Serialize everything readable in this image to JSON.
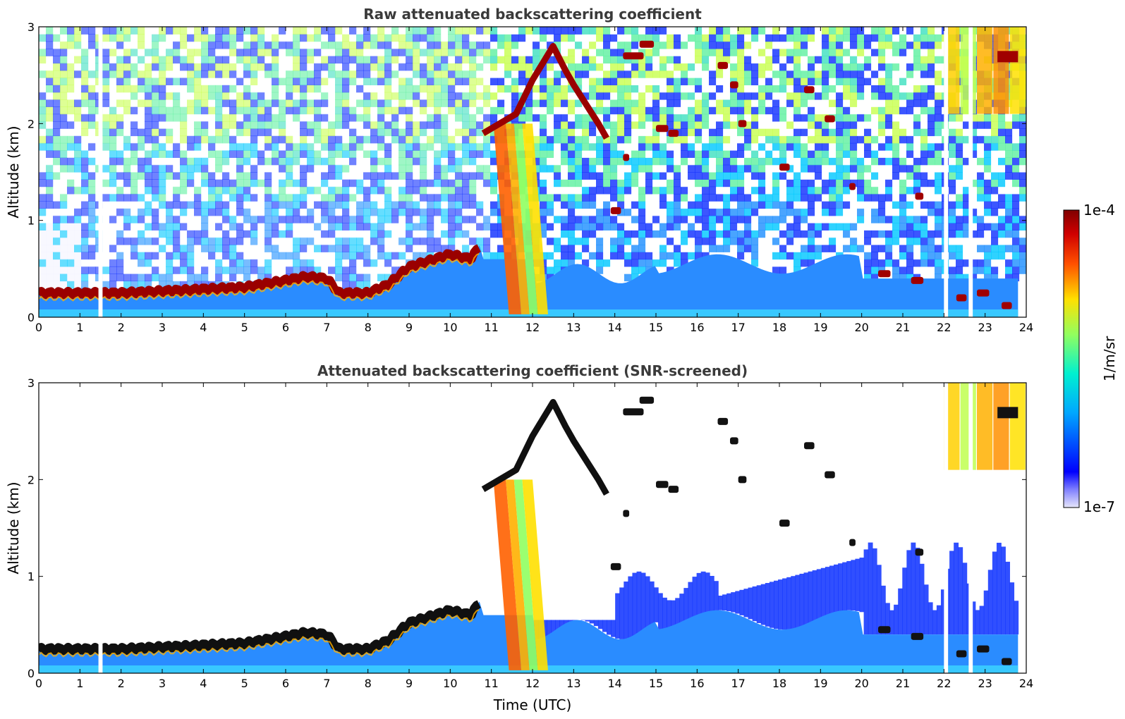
{
  "chart_data": [
    {
      "type": "heatmap",
      "title": "Raw attenuated backscattering coefficient",
      "xlabel": "",
      "ylabel": "Altitude (km)",
      "xlim": [
        0,
        24
      ],
      "ylim": [
        0,
        3
      ],
      "x_ticks": [
        "0",
        "1",
        "2",
        "3",
        "4",
        "5",
        "6",
        "7",
        "8",
        "9",
        "10",
        "11",
        "12",
        "13",
        "14",
        "15",
        "16",
        "17",
        "18",
        "19",
        "20",
        "21",
        "22",
        "23",
        "24"
      ],
      "y_ticks": [
        "0",
        "1",
        "2",
        "3"
      ],
      "screened": false,
      "layer_top_km": [
        [
          0,
          0.25
        ],
        [
          1.3,
          0.25
        ],
        [
          1.5,
          0.25
        ],
        [
          2,
          0.25
        ],
        [
          3,
          0.27
        ],
        [
          3.6,
          0.28
        ],
        [
          4,
          0.29
        ],
        [
          5,
          0.31
        ],
        [
          6,
          0.38
        ],
        [
          6.5,
          0.42
        ],
        [
          7,
          0.4
        ],
        [
          7.3,
          0.25
        ],
        [
          8,
          0.25
        ],
        [
          8.5,
          0.34
        ],
        [
          9,
          0.52
        ],
        [
          10,
          0.65
        ],
        [
          10.5,
          0.6
        ],
        [
          10.8,
          0.8
        ],
        [
          11,
          2.0
        ],
        [
          12,
          2.5
        ],
        [
          12.5,
          2.75
        ],
        [
          13,
          2.3
        ],
        [
          13.5,
          2.0
        ],
        [
          14,
          1.0
        ],
        [
          14.5,
          2.7
        ]
      ],
      "clouds": [
        {
          "x": [
            11.0,
            11.4
          ],
          "y": [
            0.05,
            2.0
          ],
          "label": "precipitation streak"
        },
        {
          "x": [
            22.2,
            23.8
          ],
          "y": [
            2.2,
            3.0
          ],
          "label": "upper cloud"
        }
      ],
      "gaps_h": [
        [
          1.45,
          1.55
        ],
        [
          22.0,
          22.1
        ],
        [
          22.6,
          22.7
        ]
      ]
    },
    {
      "type": "heatmap",
      "title": "Attenuated backscattering coefficient (SNR-screened)",
      "xlabel": "Time (UTC)",
      "ylabel": "Altitude (km)",
      "xlim": [
        0,
        24
      ],
      "ylim": [
        0,
        3
      ],
      "x_ticks": [
        "0",
        "1",
        "2",
        "3",
        "4",
        "5",
        "6",
        "7",
        "8",
        "9",
        "10",
        "11",
        "12",
        "13",
        "14",
        "15",
        "16",
        "17",
        "18",
        "19",
        "20",
        "21",
        "22",
        "23",
        "24"
      ],
      "y_ticks": [
        "0",
        "1",
        "2",
        "3"
      ],
      "screened": true
    }
  ],
  "colorbar": {
    "label": "1/m/sr",
    "max_label": "1e-4",
    "min_label": "1e-7",
    "scale": "log",
    "range": [
      1e-07,
      0.0001
    ],
    "colormap": "jet-like",
    "colors": [
      "#e6e6fa",
      "#0000ff",
      "#00bfff",
      "#00ffc0",
      "#b0ff40",
      "#ffe000",
      "#ff6000",
      "#e00000",
      "#800000"
    ]
  }
}
